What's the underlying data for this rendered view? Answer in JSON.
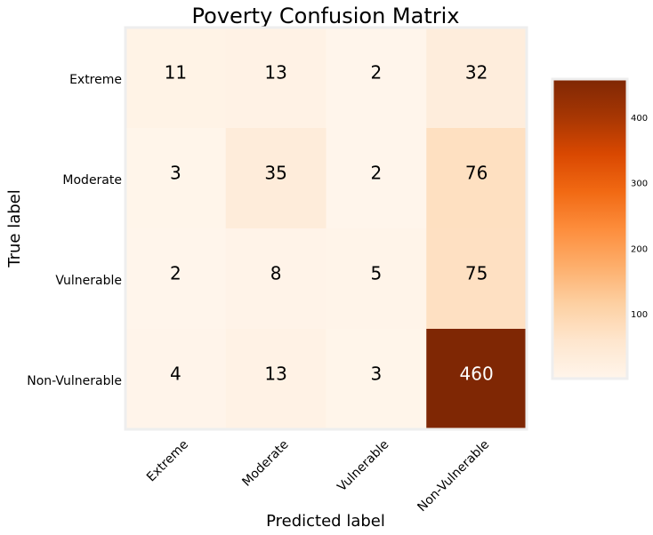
{
  "chart_data": {
    "type": "heatmap",
    "title": "Poverty Confusion Matrix",
    "xlabel": "Predicted label",
    "ylabel": "True label",
    "x_categories": [
      "Extreme",
      "Moderate",
      "Vulnerable",
      "Non-Vulnerable"
    ],
    "y_categories": [
      "Extreme",
      "Moderate",
      "Vulnerable",
      "Non-Vulnerable"
    ],
    "values": [
      [
        11,
        13,
        2,
        32
      ],
      [
        3,
        35,
        2,
        76
      ],
      [
        2,
        8,
        5,
        75
      ],
      [
        4,
        13,
        3,
        460
      ]
    ],
    "colormap": "Oranges",
    "colorbar": {
      "ticks": [
        100,
        200,
        300,
        400
      ],
      "tick_labels": [
        "100",
        "200",
        "300",
        "400"
      ],
      "range": [
        2,
        460
      ]
    },
    "colors": {
      "low": "#fff5eb",
      "high": "#7f2704",
      "light_text": "#ffffff",
      "dark_text": "#000000"
    }
  }
}
